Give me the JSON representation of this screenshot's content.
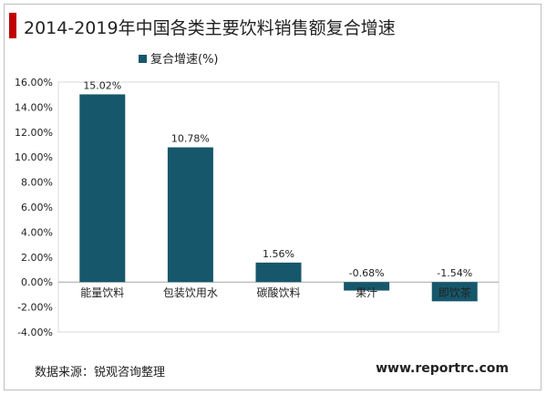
{
  "title": "2014-2019年中国各类主要饮料销售额复合增速",
  "source": "数据来源：锐观咨询整理",
  "website": "www.reportrc.com",
  "colors": {
    "bar": "#17576b",
    "title_accent": "#c00000",
    "grid": "#d9d9d9",
    "text": "#222222"
  },
  "chart_data": {
    "type": "bar",
    "title": "2014-2019年中国各类主要饮料销售额复合增速",
    "categories": [
      "能量饮料",
      "包装饮用水",
      "碳酸饮料",
      "果汁",
      "即饮茶"
    ],
    "series": [
      {
        "name": "复合增速(%)",
        "values": [
          15.02,
          10.78,
          1.56,
          -0.68,
          -1.54
        ]
      }
    ],
    "data_labels": [
      "15.02%",
      "10.78%",
      "1.56%",
      "-0.68%",
      "-1.54%"
    ],
    "yticks": [
      "16.00%",
      "14.00%",
      "12.00%",
      "10.00%",
      "8.00%",
      "6.00%",
      "4.00%",
      "2.00%",
      "0.00%",
      "-2.00%",
      "-4.00%"
    ],
    "ylim": [
      -4,
      16
    ],
    "grid": true,
    "legend": "top-left"
  }
}
